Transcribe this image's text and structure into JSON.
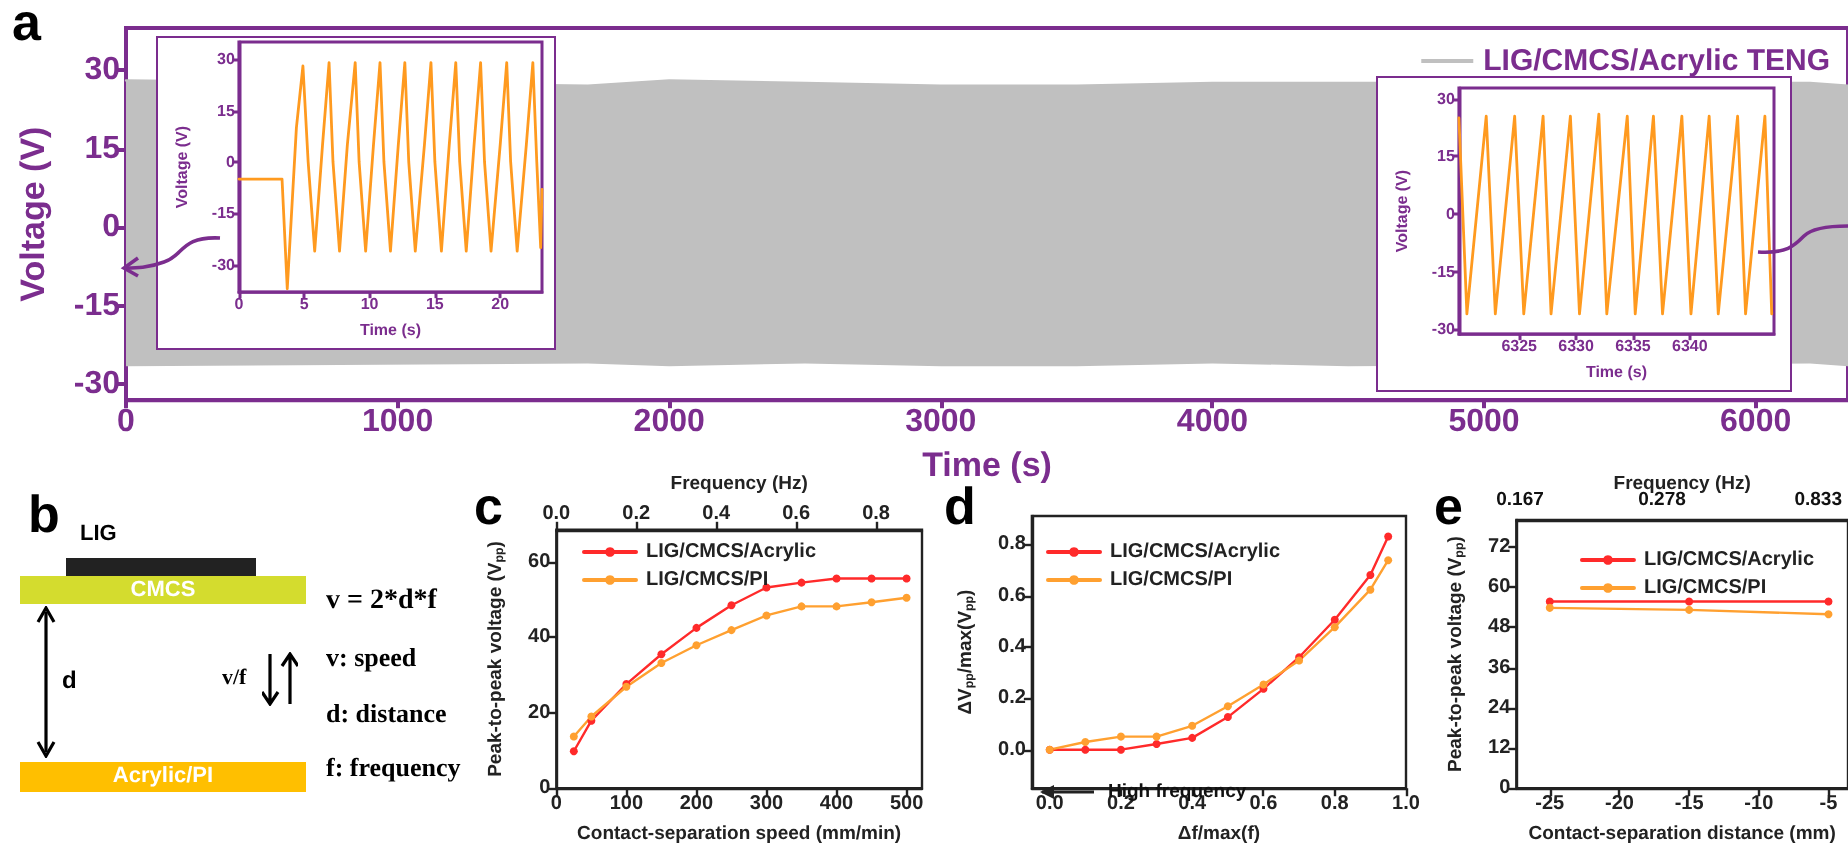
{
  "chart_data": [
    {
      "type": "line",
      "title": "a",
      "xlabel": "Time (s)",
      "ylabel": "Voltage (V)",
      "xlim": [
        0,
        6340
      ],
      "xticks": [
        0,
        1000,
        2000,
        3000,
        4000,
        5000,
        6000
      ],
      "ylim": [
        -33,
        38
      ],
      "yticks": [
        -30,
        -15,
        0,
        15,
        30
      ],
      "legend": "top right",
      "marker": "none",
      "series": [
        {
          "name": "LIG/CMCS/Acrylic TENG",
          "color": "#c0c0c0",
          "x": [
            0,
            1700,
            2000,
            2500,
            3000,
            3500,
            4000,
            4500,
            6200,
            6340
          ],
          "values": [
            28,
            27,
            28,
            27.5,
            27,
            27,
            27.5,
            27.5,
            27.5,
            27
          ],
          "upper": [
            28,
            27,
            28,
            27.5,
            27,
            27,
            27.5,
            27.5,
            27.5,
            27
          ],
          "lower": [
            -26.5,
            -26,
            -26.5,
            -26,
            -26.5,
            -26.5,
            -26,
            -26.5,
            -26,
            -26.5
          ]
        }
      ]
    },
    {
      "type": "line",
      "xlabel": "Time (s)",
      "ylabel": "Voltage (V)",
      "xlim": [
        0,
        23.2
      ],
      "xticks": [
        0,
        5,
        10,
        15,
        20
      ],
      "ylim": [
        -38,
        35
      ],
      "yticks": [
        -30,
        -15,
        0,
        15,
        30
      ],
      "marker": "none",
      "series": [
        {
          "color": "#ff9a1f",
          "x": [
            0,
            3.3,
            3.7,
            4.4,
            4.9,
            5.3,
            5.8,
            6.4,
            6.9,
            7.2,
            7.7,
            8.3,
            8.9,
            9.2,
            9.7,
            10.3,
            10.8,
            11.1,
            11.6,
            12.2,
            12.7,
            13.0,
            13.5,
            14.2,
            14.7,
            15.0,
            15.5,
            16.1,
            16.6,
            16.9,
            17.4,
            18.0,
            18.5,
            18.8,
            19.3,
            20.0,
            20.5,
            20.8,
            21.3,
            22.0,
            22.5,
            22.8,
            23.1,
            23.2
          ],
          "values": [
            -5,
            -5,
            -37,
            10,
            28,
            0,
            -26,
            5,
            29,
            0,
            -26,
            5,
            29,
            0,
            -26,
            5,
            29,
            0,
            -26,
            5,
            29,
            0,
            -26,
            5,
            29,
            0,
            -26,
            5,
            29,
            0,
            -26,
            5,
            29,
            0,
            -26,
            5,
            29,
            0,
            -26,
            5,
            29,
            0,
            -25,
            -8
          ]
        }
      ]
    },
    {
      "type": "line",
      "xlabel": "Time (s)",
      "ylabel": "Voltage (V)",
      "xlim": [
        6319.7,
        6347.4
      ],
      "xticks": [
        6325,
        6330,
        6335,
        6340
      ],
      "ylim": [
        -31.3,
        32.8
      ],
      "yticks": [
        -30,
        -15,
        0,
        15,
        30
      ],
      "marker": "none",
      "series": [
        {
          "color": "#ff9a1f",
          "x": [
            6319.7,
            6320.4,
            6322.1,
            6322.9,
            6324.6,
            6325.4,
            6327.1,
            6327.8,
            6329.5,
            6330.3,
            6332.0,
            6332.7,
            6334.5,
            6335.2,
            6336.8,
            6337.6,
            6339.3,
            6340.1,
            6341.7,
            6342.5,
            6344.2,
            6344.9,
            6346.6,
            6347.2
          ],
          "values": [
            25,
            -26,
            25.5,
            -26,
            25.5,
            -26,
            25.5,
            -26,
            25.5,
            -26,
            26,
            -26,
            25.5,
            -26,
            25.5,
            -26,
            25.5,
            -26,
            25.5,
            -26,
            25.5,
            -26,
            25.5,
            -26
          ]
        }
      ]
    },
    {
      "type": "other",
      "title": "b",
      "annotations": [
        "LIG",
        "CMCS",
        "Acrylic/PI",
        "d",
        "v/f",
        "v = 2*d*f",
        "v: speed",
        "d: distance",
        "f: frequency"
      ]
    },
    {
      "type": "line",
      "title": "c",
      "xlabel": "Contact-separation speed (mm/min)",
      "ylabel": "Peak-to-peak voltage (V$_{pp}$)",
      "x2label": "Frequency (Hz)",
      "xlim": [
        0,
        522
      ],
      "xticks": [
        0,
        100,
        200,
        300,
        400,
        500
      ],
      "x2lim": [
        0,
        0.915
      ],
      "x2ticks": [
        {
          "value": 0,
          "label": "0.0"
        },
        0.2,
        0.4,
        0.6,
        0.8
      ],
      "ylim": [
        0,
        68.5
      ],
      "yticks": [
        0,
        20,
        40,
        60
      ],
      "legend": "top left",
      "marker": "circle",
      "series": [
        {
          "name": "LIG/CMCS/Acrylic",
          "color": "#ff2a2a",
          "x": [
            25,
            50,
            100,
            150,
            200,
            250,
            300,
            350,
            400,
            450,
            500
          ],
          "values": [
            9.8,
            17.9,
            27.6,
            35.5,
            42.5,
            48.5,
            53.2,
            54.5,
            55.6,
            55.6,
            55.6
          ]
        },
        {
          "name": "LIG/CMCS/PI",
          "color": "#ffa030",
          "x": [
            25,
            50,
            100,
            150,
            200,
            250,
            300,
            350,
            400,
            450,
            500
          ],
          "values": [
            13.7,
            19,
            26.9,
            33.2,
            37.9,
            41.9,
            45.8,
            48.2,
            48.2,
            49.3,
            50.5
          ]
        }
      ]
    },
    {
      "type": "line",
      "title": "d",
      "xlabel": "Δf/max(f)",
      "ylabel": "ΔV$_{pp}$/max(V$_{pp}$)",
      "xlim": [
        -0.05,
        1.0
      ],
      "xticks": [
        {
          "value": 0,
          "label": "0.0"
        },
        0.2,
        0.4,
        0.6,
        0.8,
        {
          "value": 1,
          "label": "1.0"
        }
      ],
      "ylim": [
        -0.15,
        0.91
      ],
      "yticks": [
        {
          "value": 0,
          "label": "0.0"
        },
        0.2,
        0.4,
        0.6,
        0.8
      ],
      "legend": "top left",
      "marker": "circle",
      "annotations": [
        "High frequency"
      ],
      "series": [
        {
          "name": "LIG/CMCS/Acrylic",
          "color": "#ff2a2a",
          "x": [
            0,
            0.1,
            0.2,
            0.3,
            0.4,
            0.5,
            0.6,
            0.7,
            0.8,
            0.9,
            0.95
          ],
          "values": [
            0,
            0,
            0,
            0.022,
            0.046,
            0.127,
            0.237,
            0.36,
            0.506,
            0.68,
            0.83
          ]
        },
        {
          "name": "LIG/CMCS/PI",
          "color": "#ffa030",
          "x": [
            0,
            0.1,
            0.2,
            0.3,
            0.4,
            0.5,
            0.6,
            0.7,
            0.8,
            0.9,
            0.95
          ],
          "values": [
            0,
            0.03,
            0.051,
            0.051,
            0.093,
            0.169,
            0.254,
            0.347,
            0.477,
            0.623,
            0.738
          ]
        }
      ]
    },
    {
      "type": "line",
      "title": "e",
      "xlabel": "Contact-separation distance (mm)",
      "ylabel": "Peak-to-peak voltage (V$_{pp}$)",
      "x2label": "Frequency (Hz)",
      "xlim": [
        -27.4,
        -3.6
      ],
      "xticks": [
        -25,
        -20,
        -15,
        -10,
        -5
      ],
      "annotations": [
        "0.167",
        "0.278",
        "0.833"
      ],
      "ylim": [
        0,
        80
      ],
      "yticks": [
        0,
        12,
        24,
        36,
        48,
        60,
        72
      ],
      "legend": "top right",
      "marker": "circle",
      "series": [
        {
          "name": "LIG/CMCS/Acrylic",
          "color": "#ff2a2a",
          "x": [
            -25,
            -15,
            -5
          ],
          "values": [
            55.7,
            55.7,
            55.7
          ]
        },
        {
          "name": "LIG/CMCS/PI",
          "color": "#ffa030",
          "x": [
            -25,
            -15,
            -5
          ],
          "values": [
            53.8,
            53.2,
            51.9
          ]
        }
      ]
    }
  ]
}
